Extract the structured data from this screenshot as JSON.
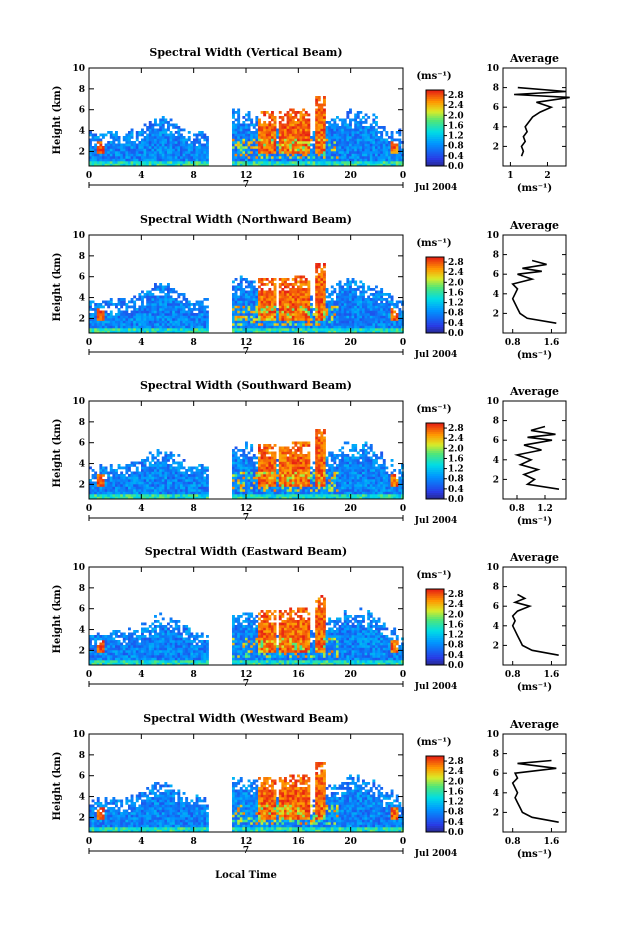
{
  "figure": {
    "xlabel": "Local Time",
    "ylabel": "Height (km)",
    "unit_label": "(ms⁻¹)",
    "avg_title": "Average",
    "date_label": "Jul 2004",
    "day_label": "7"
  },
  "chart_data": [
    {
      "type": "heatmap",
      "title": "Spectral Width (Vertical Beam)",
      "xlabel": "",
      "ylabel": "Height (km)",
      "x_ticks": [
        "0",
        "4",
        "8",
        "12",
        "16",
        "20",
        "0"
      ],
      "y_ticks": [
        "2",
        "4",
        "6",
        "8",
        "10"
      ],
      "xlim": [
        0,
        24
      ],
      "ylim": [
        0.6,
        10
      ],
      "colorbar": {
        "label": "(ms⁻¹)",
        "ticks": [
          "0.0",
          "0.4",
          "0.8",
          "1.2",
          "1.6",
          "2.0",
          "2.4",
          "2.8"
        ],
        "range": [
          0,
          3.0
        ]
      },
      "data_gap_hours": [
        9.0,
        10.9
      ],
      "convective_columns_hours": [
        13.2,
        13.8,
        14.8,
        15.6,
        16.4,
        17.6
      ],
      "average_profile": {
        "title": "Average",
        "xlabel": "(ms⁻¹)",
        "x_ticks": [
          "1",
          "2"
        ],
        "xlim": [
          0.8,
          2.5
        ],
        "y_ticks": [
          "2",
          "4",
          "6",
          "8",
          "10"
        ],
        "ylim": [
          0,
          10
        ],
        "heights_km": [
          1.0,
          1.5,
          2.0,
          2.5,
          3.0,
          3.5,
          4.0,
          4.5,
          5.0,
          5.5,
          6.0,
          6.5,
          7.0,
          7.3,
          7.6,
          8.0
        ],
        "values": [
          1.3,
          1.35,
          1.3,
          1.4,
          1.35,
          1.45,
          1.4,
          1.5,
          1.6,
          1.8,
          2.1,
          1.7,
          2.6,
          1.1,
          2.5,
          1.2
        ]
      }
    },
    {
      "type": "heatmap",
      "title": "Spectral Width (Northward Beam)",
      "xlabel": "",
      "ylabel": "Height (km)",
      "x_ticks": [
        "0",
        "4",
        "8",
        "12",
        "16",
        "20",
        "0"
      ],
      "y_ticks": [
        "2",
        "4",
        "6",
        "8",
        "10"
      ],
      "xlim": [
        0,
        24
      ],
      "ylim": [
        0.6,
        10
      ],
      "colorbar": {
        "label": "(ms⁻¹)",
        "ticks": [
          "0.0",
          "0.4",
          "0.8",
          "1.2",
          "1.6",
          "2.0",
          "2.4",
          "2.8"
        ],
        "range": [
          0,
          3.0
        ]
      },
      "data_gap_hours": [
        9.0,
        10.9
      ],
      "convective_columns_hours": [
        13.2,
        13.8,
        14.8,
        15.6,
        16.4,
        17.6
      ],
      "average_profile": {
        "title": "Average",
        "xlabel": "(ms⁻¹)",
        "x_ticks": [
          "0.8",
          "1.6"
        ],
        "xlim": [
          0.6,
          1.9
        ],
        "y_ticks": [
          "2",
          "4",
          "6",
          "8",
          "10"
        ],
        "ylim": [
          0,
          10
        ],
        "heights_km": [
          1.0,
          1.5,
          2.0,
          2.5,
          3.0,
          3.5,
          4.0,
          4.5,
          5.0,
          5.5,
          6.0,
          6.3,
          6.6,
          7.0,
          7.4
        ],
        "values": [
          1.7,
          1.1,
          0.95,
          0.9,
          0.85,
          0.8,
          0.85,
          0.9,
          0.8,
          1.2,
          0.9,
          1.4,
          1.0,
          1.5,
          1.2
        ]
      }
    },
    {
      "type": "heatmap",
      "title": "Spectral Width (Southward Beam)",
      "xlabel": "",
      "ylabel": "Height (km)",
      "x_ticks": [
        "0",
        "4",
        "8",
        "12",
        "16",
        "20",
        "0"
      ],
      "y_ticks": [
        "2",
        "4",
        "6",
        "8",
        "10"
      ],
      "xlim": [
        0,
        24
      ],
      "ylim": [
        0.6,
        10
      ],
      "colorbar": {
        "label": "(ms⁻¹)",
        "ticks": [
          "0.0",
          "0.4",
          "0.8",
          "1.2",
          "1.6",
          "2.0",
          "2.4",
          "2.8"
        ],
        "range": [
          0,
          3.0
        ]
      },
      "data_gap_hours": [
        9.0,
        10.9
      ],
      "convective_columns_hours": [
        13.2,
        13.8,
        14.8,
        15.6,
        16.4,
        17.6
      ],
      "average_profile": {
        "title": "Average",
        "xlabel": "(ms⁻¹)",
        "x_ticks": [
          "0.8",
          "1.2"
        ],
        "xlim": [
          0.6,
          1.5
        ],
        "y_ticks": [
          "2",
          "4",
          "6",
          "8",
          "10"
        ],
        "ylim": [
          0,
          10
        ],
        "heights_km": [
          1.0,
          1.5,
          2.0,
          2.5,
          3.0,
          3.5,
          4.0,
          4.5,
          5.0,
          5.5,
          6.0,
          6.3,
          6.6,
          7.0,
          7.4
        ],
        "values": [
          1.4,
          0.95,
          1.05,
          0.9,
          1.1,
          0.85,
          1.0,
          0.8,
          1.15,
          0.9,
          1.3,
          0.95,
          1.35,
          1.0,
          1.2
        ]
      }
    },
    {
      "type": "heatmap",
      "title": "Spectral Width (Eastward Beam)",
      "xlabel": "",
      "ylabel": "Height (km)",
      "x_ticks": [
        "0",
        "4",
        "8",
        "12",
        "16",
        "20",
        "0"
      ],
      "y_ticks": [
        "2",
        "4",
        "6",
        "8",
        "10"
      ],
      "xlim": [
        0,
        24
      ],
      "ylim": [
        0.6,
        10
      ],
      "colorbar": {
        "label": "(ms⁻¹)",
        "ticks": [
          "0.0",
          "0.4",
          "0.8",
          "1.2",
          "1.6",
          "2.0",
          "2.4",
          "2.8"
        ],
        "range": [
          0,
          3.0
        ]
      },
      "data_gap_hours": [
        9.0,
        10.9
      ],
      "convective_columns_hours": [
        13.2,
        13.8,
        14.8,
        15.6,
        16.4,
        17.6
      ],
      "average_profile": {
        "title": "Average",
        "xlabel": "(ms⁻¹)",
        "x_ticks": [
          "0.8",
          "1.6"
        ],
        "xlim": [
          0.6,
          1.9
        ],
        "y_ticks": [
          "2",
          "4",
          "6",
          "8",
          "10"
        ],
        "ylim": [
          0,
          10
        ],
        "heights_km": [
          1.0,
          1.5,
          2.0,
          2.5,
          3.0,
          3.5,
          4.0,
          4.5,
          5.0,
          5.5,
          6.0,
          6.4,
          6.8,
          7.2
        ],
        "values": [
          1.75,
          1.2,
          1.0,
          0.95,
          0.9,
          0.85,
          0.8,
          0.85,
          0.8,
          0.9,
          1.15,
          0.85,
          1.05,
          0.9
        ]
      }
    },
    {
      "type": "heatmap",
      "title": "Spectral Width (Westward Beam)",
      "xlabel": "Local Time",
      "ylabel": "Height (km)",
      "x_ticks": [
        "0",
        "4",
        "8",
        "12",
        "16",
        "20",
        "0"
      ],
      "y_ticks": [
        "2",
        "4",
        "6",
        "8",
        "10"
      ],
      "xlim": [
        0,
        24
      ],
      "ylim": [
        0.6,
        10
      ],
      "colorbar": {
        "label": "(ms⁻¹)",
        "ticks": [
          "0.0",
          "0.4",
          "0.8",
          "1.2",
          "1.6",
          "2.0",
          "2.4",
          "2.8"
        ],
        "range": [
          0,
          3.0
        ]
      },
      "data_gap_hours": [
        9.0,
        10.9
      ],
      "convective_columns_hours": [
        13.2,
        13.8,
        14.8,
        15.6,
        16.4,
        17.6
      ],
      "average_profile": {
        "title": "Average",
        "xlabel": "(ms⁻¹)",
        "x_ticks": [
          "0.8",
          "1.6"
        ],
        "xlim": [
          0.6,
          1.9
        ],
        "y_ticks": [
          "2",
          "4",
          "6",
          "8",
          "10"
        ],
        "ylim": [
          0,
          10
        ],
        "heights_km": [
          1.0,
          1.5,
          2.0,
          2.5,
          3.0,
          3.5,
          4.0,
          4.5,
          5.0,
          5.5,
          6.0,
          6.5,
          7.0,
          7.3
        ],
        "values": [
          1.75,
          1.2,
          1.0,
          0.95,
          0.9,
          0.85,
          0.9,
          0.85,
          0.8,
          0.9,
          0.85,
          1.7,
          0.9,
          1.6
        ]
      }
    }
  ]
}
